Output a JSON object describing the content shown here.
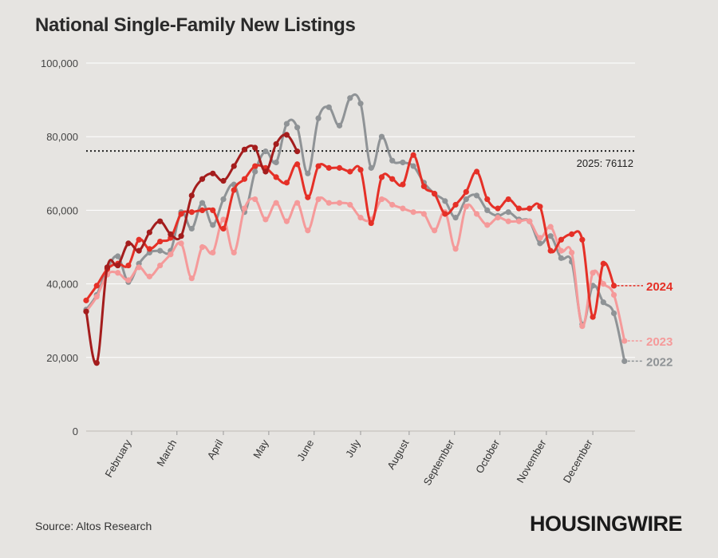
{
  "header": {
    "title": "National Single-Family New Listings"
  },
  "footer": {
    "source": "Source: Altos Research",
    "logo": "HOUSINGWIRE"
  },
  "chart_data": {
    "type": "line",
    "title": "National Single-Family New Listings",
    "xlabel": "",
    "ylabel": "",
    "week_range": [
      1,
      53
    ],
    "ylim": [
      0,
      100000
    ],
    "yticks": [
      0,
      20000,
      40000,
      60000,
      80000,
      100000
    ],
    "ytick_labels": [
      "0",
      "20,000",
      "40,000",
      "60,000",
      "80,000",
      "100,000"
    ],
    "xtick_labels": [
      "February",
      "March",
      "April",
      "May",
      "June",
      "July",
      "August",
      "September",
      "October",
      "November",
      "December"
    ],
    "xtick_weeks": [
      5.3,
      9.6,
      14,
      18.3,
      22.6,
      27,
      31.6,
      35.9,
      40.2,
      44.6,
      49
    ],
    "grid": true,
    "reference_line": {
      "value": 76112,
      "label": "2025: 76112"
    },
    "series": [
      {
        "name": "2022",
        "color": "#8f9396",
        "values": [
          33000,
          37000,
          44000,
          47500,
          40500,
          45500,
          48500,
          49000,
          49000,
          59500,
          55000,
          62000,
          56000,
          63000,
          67000,
          59500,
          70500,
          76000,
          73000,
          83500,
          82500,
          70000,
          85000,
          88000,
          83000,
          90500,
          89000,
          71500,
          80000,
          73500,
          73000,
          72000,
          67500,
          64500,
          62500,
          58000,
          63000,
          64000,
          60000,
          58500,
          59500,
          57500,
          57000,
          51000,
          53000,
          47000,
          46000,
          29000,
          39500,
          35000,
          32000,
          19000
        ]
      },
      {
        "name": "2023",
        "color": "#f59a9a",
        "values": [
          32500,
          36500,
          42500,
          43000,
          41000,
          44500,
          42000,
          45000,
          48000,
          51000,
          41500,
          50000,
          48500,
          57500,
          48500,
          60500,
          63000,
          57500,
          62000,
          57000,
          62000,
          54500,
          63000,
          62000,
          62000,
          61500,
          58000,
          57500,
          63000,
          61500,
          60500,
          59500,
          59000,
          54500,
          59500,
          49500,
          61000,
          59000,
          56000,
          58000,
          57000,
          57000,
          57000,
          52500,
          55500,
          49000,
          48500,
          28500,
          43000,
          40000,
          37000,
          24500
        ]
      },
      {
        "name": "2024",
        "color": "#e53027",
        "values": [
          35500,
          39500,
          44000,
          45500,
          45000,
          52000,
          49500,
          51500,
          52500,
          59000,
          59500,
          60000,
          60000,
          55000,
          65500,
          68500,
          72000,
          71500,
          69000,
          67500,
          72500,
          63500,
          72000,
          71500,
          71500,
          70500,
          71000,
          56500,
          69000,
          68500,
          67000,
          75000,
          66500,
          64500,
          59000,
          61500,
          65000,
          70500,
          63000,
          60500,
          63000,
          60500,
          60500,
          61000,
          49000,
          52000,
          53500,
          52000,
          31000,
          45500,
          39500
        ]
      },
      {
        "name": "2025",
        "color": "#a41d1d",
        "values": [
          32500,
          18500,
          44500,
          45000,
          51000,
          49000,
          54000,
          57000,
          53500,
          53000,
          64000,
          68500,
          70000,
          68000,
          72000,
          76500,
          77000,
          70500,
          78000,
          80500,
          76000
        ]
      }
    ]
  }
}
